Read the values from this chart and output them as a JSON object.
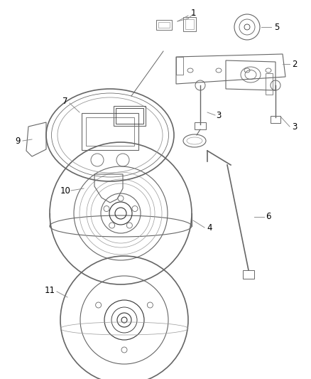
{
  "bg_color": "#ffffff",
  "lc": "#666666",
  "lc_dark": "#333333",
  "lc_light": "#999999",
  "fig_width": 4.38,
  "fig_height": 5.33,
  "dpi": 100
}
